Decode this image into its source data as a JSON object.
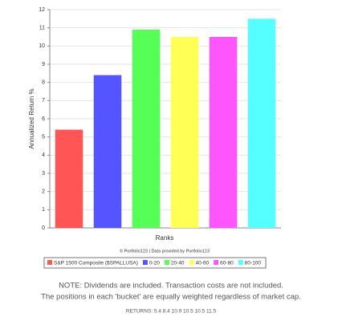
{
  "chart_data": {
    "type": "bar",
    "y_label": "Annualized Return %",
    "x_label": "Ranks",
    "credit": "© Portfolio123 | Data provided by Portfolio123",
    "categories": [
      null
    ],
    "series": [
      {
        "name": "S&P 1500 Composite ($SPALLUSA)",
        "color": "#ff5555",
        "values": [
          5.4
        ]
      },
      {
        "name": "0-20",
        "color": "#5555ff",
        "values": [
          8.4
        ]
      },
      {
        "name": "20-40",
        "color": "#55ff55",
        "values": [
          10.9
        ]
      },
      {
        "name": "40-60",
        "color": "#ffff55",
        "values": [
          10.5
        ]
      },
      {
        "name": "60-80",
        "color": "#ff55ff",
        "values": [
          10.5
        ]
      },
      {
        "name": "80-100",
        "color": "#55ffff",
        "values": [
          11.5
        ]
      }
    ],
    "ylim": [
      0,
      12
    ],
    "yticks": [
      0,
      1,
      2,
      3,
      4,
      5,
      6,
      7,
      8,
      9,
      10,
      11,
      12
    ],
    "grid": true
  },
  "notes": [
    "NOTE: Dividends are included. Transaction costs are not included.",
    "The positions in each 'bucket' are equally weighted regardless of market cap.",
    "RETURNS: 5.4 8.4 10.9 10.5 10.5 11.5"
  ]
}
